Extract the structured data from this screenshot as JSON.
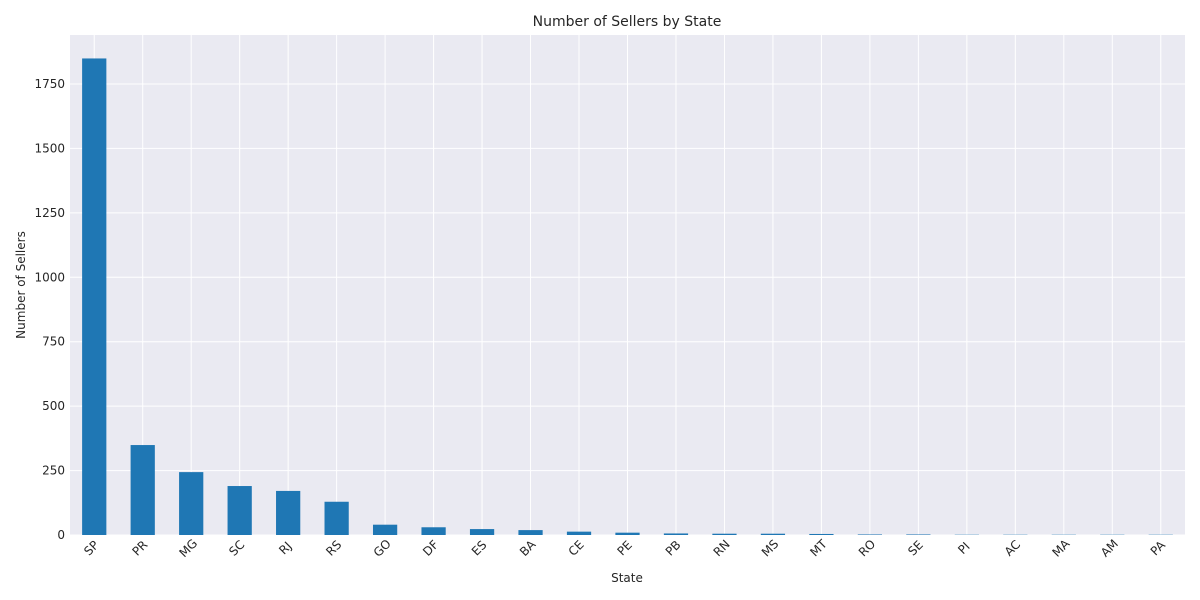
{
  "chart_data": {
    "type": "bar",
    "title": "Number of Sellers by State",
    "xlabel": "State",
    "ylabel": "Number of Sellers",
    "categories": [
      "SP",
      "PR",
      "MG",
      "SC",
      "RJ",
      "RS",
      "GO",
      "DF",
      "ES",
      "BA",
      "CE",
      "PE",
      "PB",
      "RN",
      "MS",
      "MT",
      "RO",
      "SE",
      "PI",
      "AC",
      "MA",
      "AM",
      "PA"
    ],
    "values": [
      1849,
      349,
      244,
      190,
      171,
      129,
      40,
      30,
      23,
      19,
      13,
      9,
      6,
      5,
      5,
      4,
      2,
      2,
      1,
      1,
      1,
      1,
      1
    ],
    "ylim": [
      0,
      1940
    ],
    "yticks": [
      0,
      250,
      500,
      750,
      1000,
      1250,
      1500,
      1750
    ],
    "grid": true,
    "colors": {
      "bar": "#1f77b4",
      "plot_background": "#eaeaf2",
      "grid": "#ffffff",
      "text": "#262626"
    }
  }
}
